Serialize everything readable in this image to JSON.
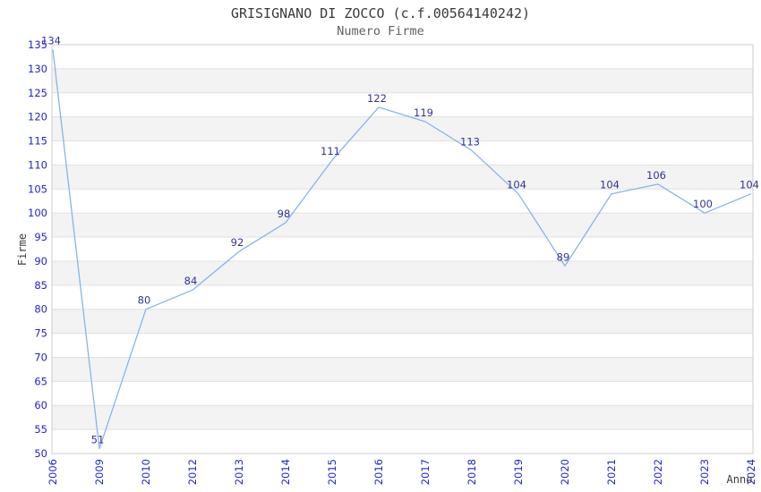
{
  "chart_data": {
    "type": "line",
    "title": "GRISIGNANO DI ZOCCO (c.f.00564140242)",
    "subtitle": "Numero Firme",
    "xlabel": "Anno",
    "ylabel": "Firme",
    "categories": [
      "2006",
      "2009",
      "2010",
      "2012",
      "2013",
      "2014",
      "2015",
      "2016",
      "2017",
      "2018",
      "2019",
      "2020",
      "2021",
      "2022",
      "2023",
      "2024"
    ],
    "values": [
      134,
      51,
      80,
      84,
      92,
      98,
      111,
      122,
      119,
      113,
      104,
      89,
      104,
      106,
      100,
      104
    ],
    "data_labels_shown": true,
    "ylim": [
      50,
      135
    ],
    "ytick_step": 5,
    "yticks": [
      50,
      55,
      60,
      65,
      70,
      75,
      80,
      85,
      90,
      95,
      100,
      105,
      110,
      115,
      120,
      125,
      130,
      135
    ],
    "grid": "horizontal",
    "banded_background": true,
    "legend": "none",
    "colors": {
      "line": "#85b4ee",
      "tick_labels": "#2323cf",
      "data_labels": "#333399",
      "band": "#f3f3f3",
      "gridline": "#e0e0e0",
      "frame": "#cccccc",
      "title": "#3a3a3a",
      "subtitle": "#606060",
      "axis_titles": "#3a3a3a",
      "background": "#ffffff"
    }
  }
}
